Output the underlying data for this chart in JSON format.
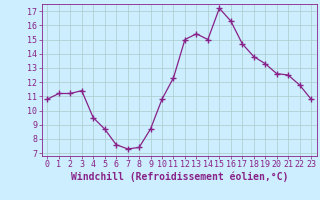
{
  "x": [
    0,
    1,
    2,
    3,
    4,
    5,
    6,
    7,
    8,
    9,
    10,
    11,
    12,
    13,
    14,
    15,
    16,
    17,
    18,
    19,
    20,
    21,
    22,
    23
  ],
  "y": [
    10.8,
    11.2,
    11.2,
    11.4,
    9.5,
    8.7,
    7.6,
    7.3,
    7.4,
    8.7,
    10.8,
    12.3,
    15.0,
    15.4,
    15.0,
    17.2,
    16.3,
    14.7,
    13.8,
    13.3,
    12.6,
    12.5,
    11.8,
    10.8
  ],
  "line_color": "#882288",
  "marker": "+",
  "marker_size": 4,
  "bg_color": "#cceeff",
  "grid_color": "#aacccc",
  "xlabel": "Windchill (Refroidissement éolien,°C)",
  "ylabel_ticks": [
    7,
    8,
    9,
    10,
    11,
    12,
    13,
    14,
    15,
    16,
    17
  ],
  "ylim": [
    6.8,
    17.5
  ],
  "xlim": [
    -0.5,
    23.5
  ],
  "tick_color": "#882288",
  "label_color": "#882288",
  "xlabel_fontsize": 7.0,
  "tick_fontsize": 6.0
}
